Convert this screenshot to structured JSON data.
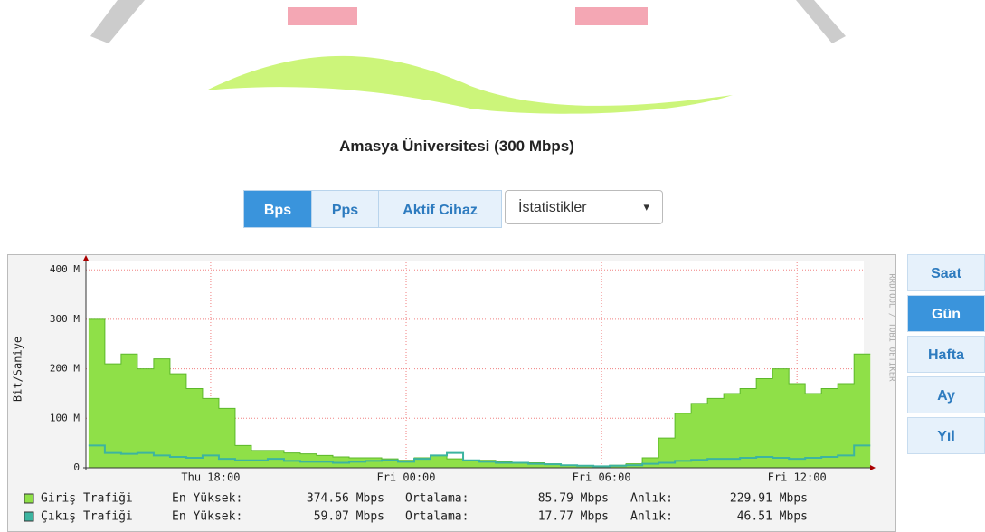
{
  "page": {
    "title": "Amasya Üniversitesi (300 Mbps)",
    "buttons": [
      "Bps",
      "Pps",
      "Aktif Cihaz"
    ],
    "select": "İstatistikler",
    "periods": [
      "Saat",
      "Gün",
      "Hafta",
      "Ay",
      "Yıl"
    ],
    "watermark": "RRDTOOL / TOBI OETIKER"
  },
  "chart_data": {
    "type": "area",
    "ylabel": "Bit/Saniye",
    "grid": true,
    "x": [
      14.5,
      15,
      15.5,
      16,
      16.5,
      17,
      17.5,
      18,
      18.5,
      19,
      19.5,
      20,
      20.5,
      21,
      21.5,
      22,
      22.5,
      23,
      23.5,
      24,
      24.5,
      25,
      25.5,
      26,
      26.5,
      27,
      27.5,
      28,
      28.5,
      29,
      29.5,
      30,
      30.5,
      31,
      31.5,
      32,
      32.5,
      33,
      33.5,
      34,
      34.5,
      35,
      35.5,
      36,
      36.5,
      37,
      37.5,
      38
    ],
    "xlim": [
      14.17,
      38.05
    ],
    "xticks": [
      {
        "value": 18,
        "label": "Thu 18:00"
      },
      {
        "value": 24,
        "label": "Fri 00:00"
      },
      {
        "value": 30,
        "label": "Fri 06:00"
      },
      {
        "value": 36,
        "label": "Fri 12:00"
      }
    ],
    "ylim": [
      0,
      415
    ],
    "yticks": [
      0,
      {
        "value": 100,
        "label": "100 M"
      },
      {
        "value": 200,
        "label": "200 M"
      },
      {
        "value": 300,
        "label": "300 M"
      },
      {
        "value": 400,
        "label": "400 M"
      }
    ],
    "series": [
      {
        "name": "Giriş Trafiği",
        "color": "#8fe048",
        "values": [
          300,
          210,
          230,
          200,
          220,
          190,
          160,
          140,
          120,
          45,
          35,
          35,
          30,
          28,
          25,
          22,
          20,
          20,
          18,
          15,
          20,
          25,
          18,
          15,
          15,
          12,
          10,
          10,
          8,
          5,
          4,
          3,
          5,
          8,
          20,
          60,
          110,
          130,
          140,
          150,
          160,
          180,
          200,
          170,
          150,
          160,
          170,
          230
        ],
        "stats": [
          {
            "label": "En Yüksek:",
            "value": "374.56 Mbps"
          },
          {
            "label": "Ortalama:",
            "value": "85.79 Mbps"
          },
          {
            "label": "Anlık:",
            "value": "229.91 Mbps"
          }
        ]
      },
      {
        "name": "Çıkış Trafiği",
        "color": "#3cb4a0",
        "values": [
          45,
          30,
          28,
          30,
          25,
          22,
          20,
          25,
          18,
          15,
          15,
          18,
          14,
          12,
          12,
          10,
          12,
          14,
          15,
          12,
          18,
          25,
          30,
          15,
          12,
          10,
          10,
          8,
          7,
          5,
          4,
          3,
          4,
          5,
          8,
          10,
          14,
          16,
          18,
          18,
          20,
          22,
          20,
          18,
          20,
          22,
          25,
          45
        ],
        "stats": [
          {
            "label": "En Yüksek:",
            "value": "59.07 Mbps"
          },
          {
            "label": "Ortalama:",
            "value": "17.77 Mbps"
          },
          {
            "label": "Anlık:",
            "value": "46.51 Mbps"
          }
        ]
      }
    ]
  }
}
